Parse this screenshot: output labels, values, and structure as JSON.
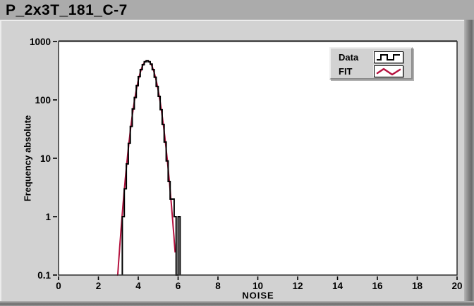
{
  "window": {
    "title": "P_2x3T_181_C-7"
  },
  "colors": {
    "titlebar_bg": "#ababab",
    "panel_bg": "#d2d2d2",
    "plot_bg": "#ffffff",
    "plot_frame_top": "#6a6a6a",
    "plot_frame": "#2e2e2e",
    "tick_color": "#000000",
    "text": "#000000",
    "data_series": "#000000",
    "fit_series": "#b5123f"
  },
  "legend": {
    "items": [
      {
        "label": "Data",
        "icon": "square-wave-icon"
      },
      {
        "label": "FIT",
        "icon": "zigzag-icon"
      }
    ]
  },
  "chart_data": {
    "type": "bar",
    "subtype": "log-histogram-with-fit",
    "title": "P_2x3T_181_C-7",
    "xlabel": "NOISE",
    "ylabel": "Frequency absolute",
    "grid": "off",
    "legend_position": "top-right-inside",
    "x_axis": {
      "min": 0,
      "max": 20,
      "tick_labels": [
        "0",
        "2",
        "4",
        "6",
        "8",
        "10",
        "12",
        "14",
        "16",
        "18",
        "20"
      ]
    },
    "y_axis": {
      "scale": "log10",
      "min": 0.1,
      "max": 1000,
      "tick_labels": [
        "1000",
        "100",
        "10",
        "1",
        "0.1"
      ]
    },
    "series": [
      {
        "name": "Data",
        "style": "step-histogram",
        "color": "#000000",
        "bin_start": 3.2,
        "bin_width": 0.1,
        "counts": [
          1,
          3,
          8,
          18,
          35,
          70,
          110,
          175,
          250,
          330,
          400,
          450,
          470,
          450,
          410,
          330,
          245,
          170,
          115,
          68,
          38,
          19,
          9,
          4,
          2,
          2,
          1,
          0,
          1
        ]
      },
      {
        "name": "FIT",
        "style": "gaussian-curve",
        "color": "#b5123f",
        "amplitude": 470,
        "center": 4.45,
        "sigma": 0.36,
        "x_min": 2.93,
        "x_max": 5.85
      }
    ]
  }
}
